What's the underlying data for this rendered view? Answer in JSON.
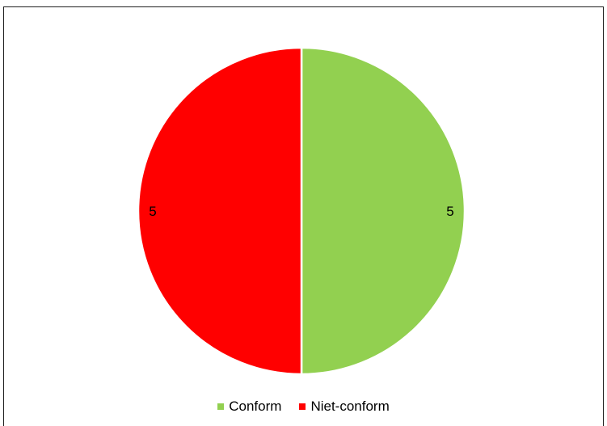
{
  "chart_data": {
    "type": "pie",
    "categories": [
      "Conform",
      "Niet-conform"
    ],
    "values": [
      5,
      5
    ],
    "colors": [
      "#92d050",
      "#ff0000"
    ],
    "data_labels": [
      "5",
      "5"
    ],
    "legend_position": "bottom",
    "title": ""
  },
  "legend": {
    "items": [
      {
        "label": "Conform",
        "color": "#92d050"
      },
      {
        "label": "Niet-conform",
        "color": "#ff0000"
      }
    ]
  }
}
